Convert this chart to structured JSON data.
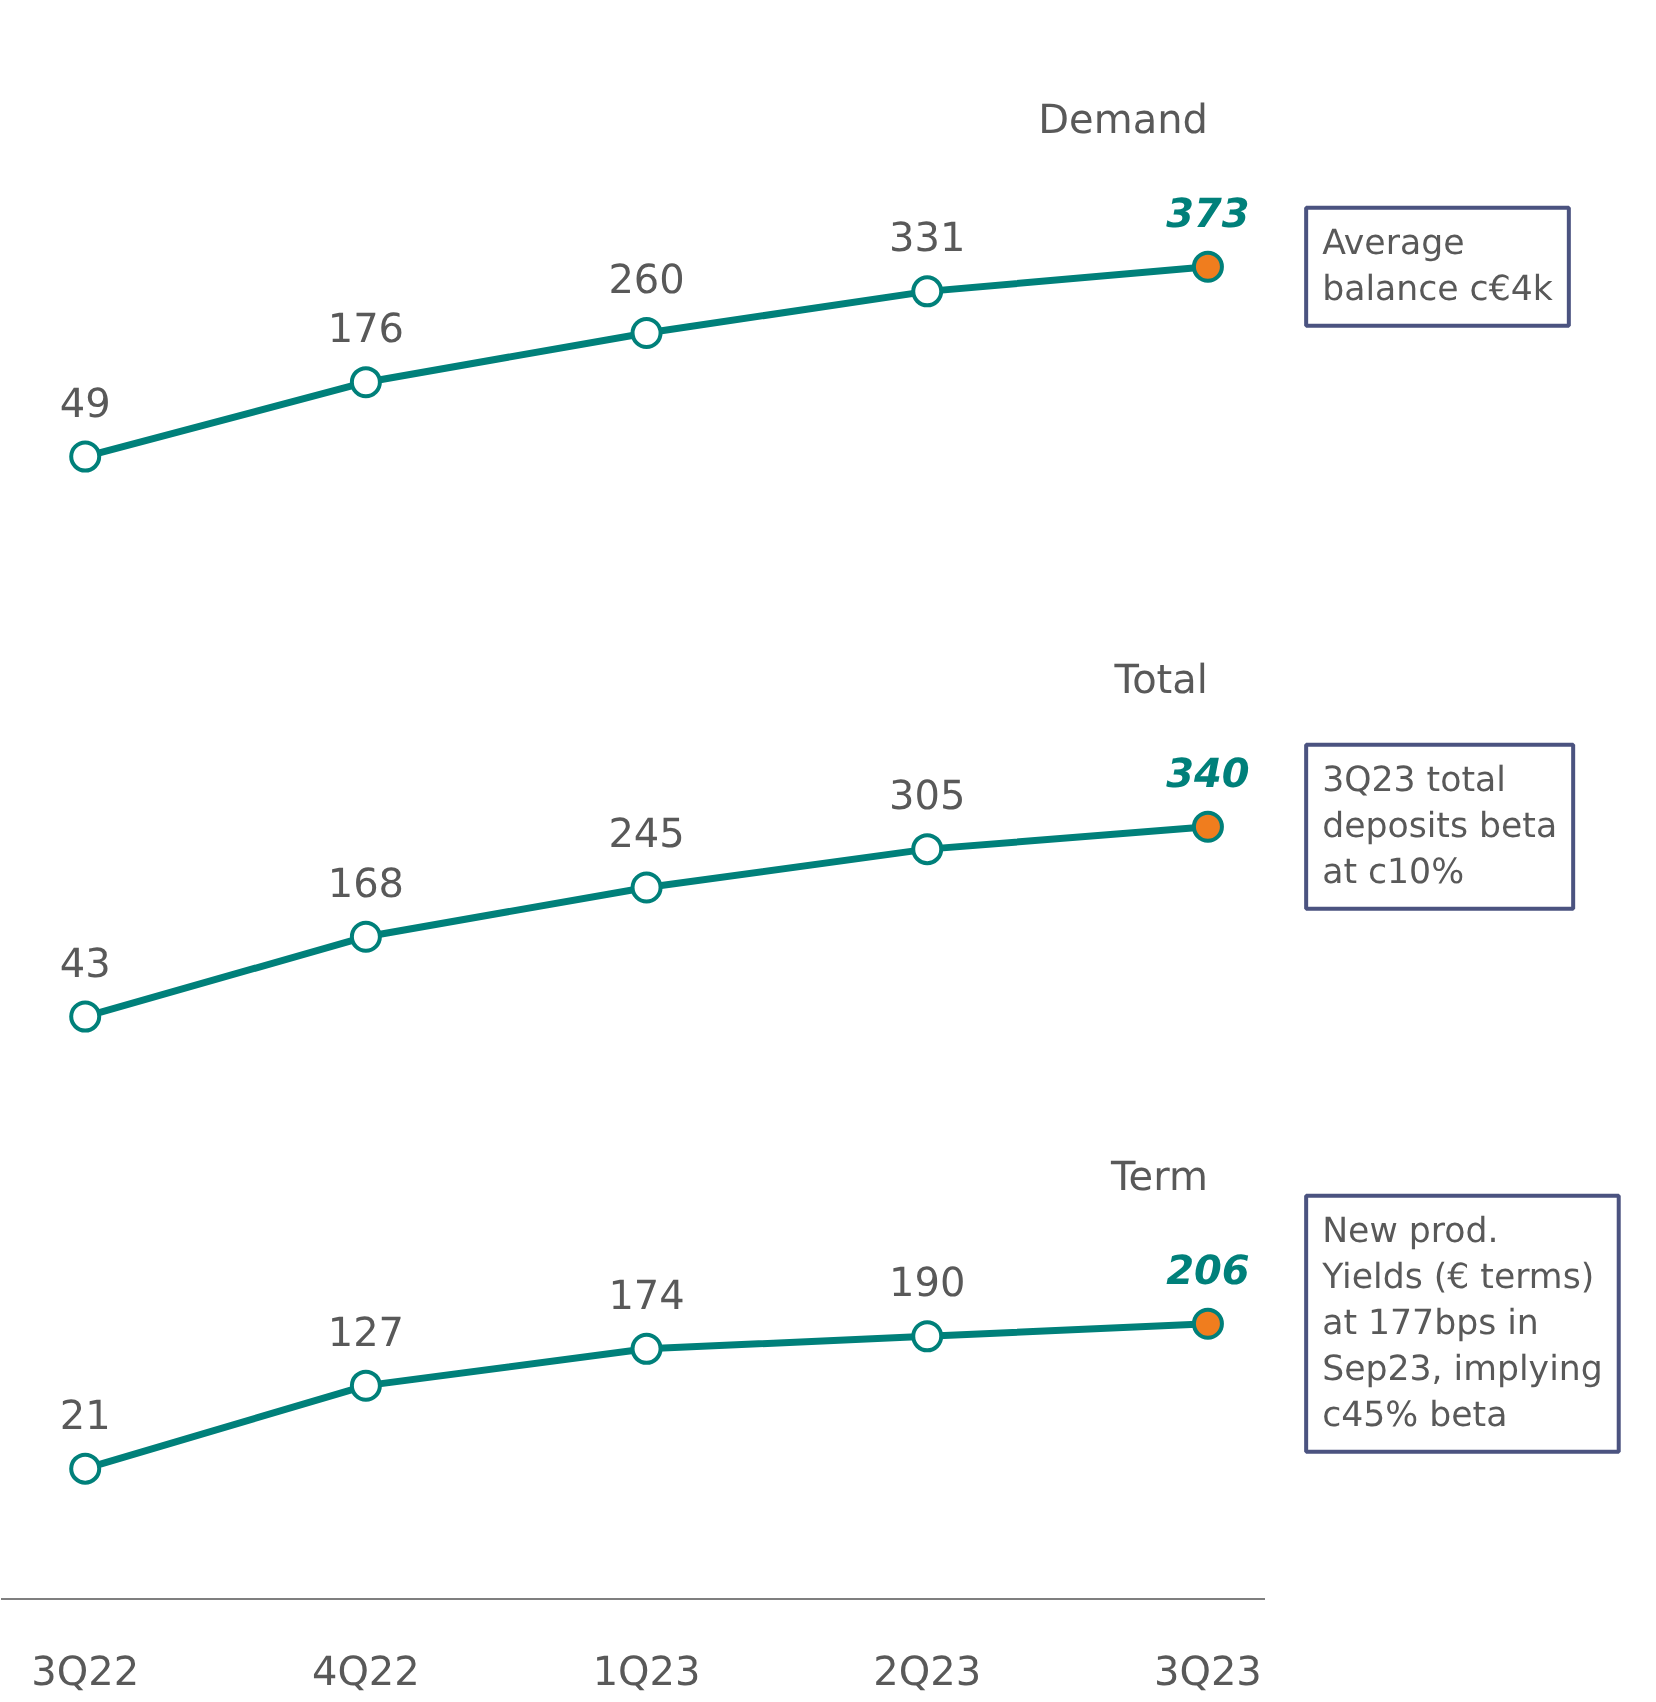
{
  "chart_data": [
    {
      "type": "line",
      "title": "Demand",
      "categories": [
        null,
        null,
        null,
        null,
        null
      ],
      "values": [
        49,
        176,
        260,
        331,
        373
      ],
      "color": "#00807a",
      "colors": [
        "#ffffff",
        "#ffffff",
        "#ffffff",
        "#ffffff",
        "#f07d1e"
      ],
      "marker": "circle",
      "data_labels": true,
      "tick_labels": false,
      "annotations": [
        "Average\nbalance c€4k"
      ]
    },
    {
      "type": "line",
      "title": "Total",
      "categories": [
        null,
        null,
        null,
        null,
        null
      ],
      "values": [
        43,
        168,
        245,
        305,
        340
      ],
      "color": "#00807a",
      "colors": [
        "#ffffff",
        "#ffffff",
        "#ffffff",
        "#ffffff",
        "#f07d1e"
      ],
      "marker": "circle",
      "data_labels": true,
      "tick_labels": false,
      "annotations": [
        "3Q23 total\ndeposits beta\nat c10%"
      ]
    },
    {
      "type": "line",
      "title": "Term",
      "categories": [
        "3Q22",
        "4Q22",
        "1Q23",
        "2Q23",
        "3Q23"
      ],
      "values": [
        21,
        127,
        174,
        190,
        206
      ],
      "color": "#00807a",
      "colors": [
        "#ffffff",
        "#ffffff",
        "#ffffff",
        "#ffffff",
        "#f07d1e"
      ],
      "marker": "circle",
      "data_labels": true,
      "tick_labels": "x",
      "annotations": [
        "New prod.\nYields (€ terms)\nat 177bps in\nSep23, implying\nc45% beta"
      ]
    }
  ]
}
